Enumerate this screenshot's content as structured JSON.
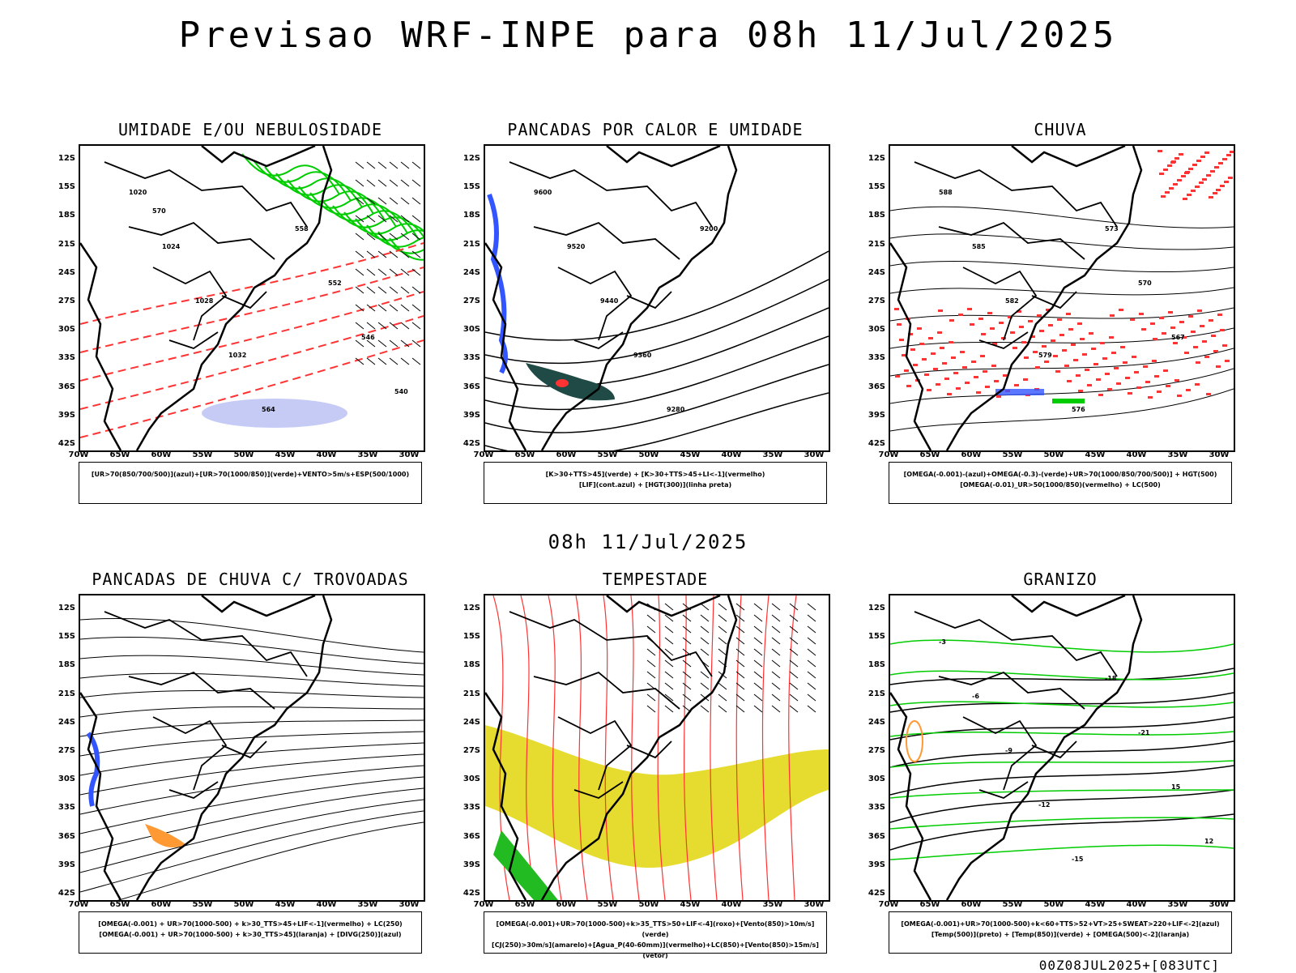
{
  "main_title": "Previsao WRF-INPE  para 08h 11/Jul/2025",
  "mid_title": "08h 11/Jul/2025",
  "footer": "00Z08JUL2025+[083UTC]",
  "lat_labels": [
    "12S",
    "15S",
    "18S",
    "21S",
    "24S",
    "27S",
    "30S",
    "33S",
    "36S",
    "39S",
    "42S"
  ],
  "lon_labels": [
    "70W",
    "65W",
    "60W",
    "55W",
    "50W",
    "45W",
    "40W",
    "35W",
    "30W"
  ],
  "panels": [
    {
      "title": "UMIDADE E/OU NEBULOSIDADE",
      "legend": [
        "[UR>70(850/700/500)](azul)+[UR>70(1000/850)](verde)+VENTO>5m/s+ESP(500/1000)"
      ],
      "contour_labels": [
        "1020",
        "1024",
        "1028",
        "1032",
        "564",
        "558",
        "552",
        "546",
        "540",
        "570"
      ],
      "colors": {
        "humidity_high": "#00cc00",
        "humidity_mid": "#a0a8f0",
        "thickness": "#ff3333",
        "pressure": "#000000"
      }
    },
    {
      "title": "PANCADAS POR CALOR E UMIDADE",
      "legend": [
        "[K>30+TTS>45](verde) + [K>30+TTS>45+LI<-1](vermelho)",
        "[LIF](cont.azul) + [HGT(300)](linha preta)"
      ],
      "contour_labels": [
        "9600",
        "9520",
        "9440",
        "9360",
        "9280",
        "9200"
      ],
      "colors": {
        "convection": "#1f4a46",
        "lifted_index": "#3355ff",
        "instability": "#ff3333"
      }
    },
    {
      "title": "CHUVA",
      "legend": [
        "[OMEGA(-0.001)-(azul)+OMEGA(-0.3)-(verde)+UR>70(1000/850/700/500)] + HGT(500)",
        "[OMEGA(-0.01)_UR>50(1000/850)(vermelho) + LC(500)"
      ],
      "contour_labels": [
        "588",
        "585",
        "582",
        "579",
        "576",
        "573",
        "570",
        "567"
      ],
      "colors": {
        "rain": "#ff3333",
        "omega_low": "#3355ff",
        "omega_high": "#00cc00"
      }
    },
    {
      "title": "PANCADAS DE CHUVA C/ TROVOADAS",
      "legend": [
        "[OMEGA(-0.001) + UR>70(1000-500) + k>30_TTS>45+LIF<-1](vermelho) + LC(250)",
        "[OMEGA(-0.001) + UR>70(1000-500) + k>30_TTS>45](laranja) + [DIVG(250)](azul)"
      ],
      "contour_labels": [],
      "colors": {
        "divergence": "#3355ff",
        "storm": "#ff9933"
      }
    },
    {
      "title": "TEMPESTADE",
      "legend": [
        "[OMEGA(-0.001)+UR>70(1000-500)+k>35_TTS>50+LIF<-4](roxo)+[Vento(850)>10m/s](verde)",
        "[CJ(250)>30m/s](amarelo)+[Agua_P(40-60mm)](vermelho)+LC(850)+[Vento(850)>15m/s](vetor)"
      ],
      "contour_labels": [],
      "colors": {
        "jet": "#e6dc30",
        "precip_water": "#ff3333",
        "wind": "#22bb22"
      }
    },
    {
      "title": "GRANIZO",
      "legend": [
        "[OMEGA(-0.001)+UR>70(1000-500)+k<60+TTS>52+VT>25+SWEAT>220+LIF<-2](azul)",
        "[Temp(500)](preto) + [Temp(850)](verde) + [OMEGA(500)<-2](laranja)"
      ],
      "contour_labels": [
        "-3",
        "-6",
        "-9",
        "-12",
        "-15",
        "-18",
        "-21",
        "15",
        "12"
      ],
      "colors": {
        "temp850": "#00cc00",
        "omega": "#ff9933"
      }
    }
  ]
}
